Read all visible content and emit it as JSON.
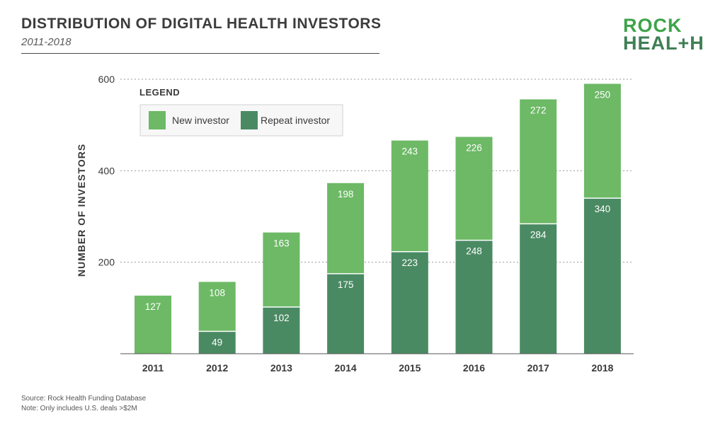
{
  "header": {
    "title": "DISTRIBUTION OF DIGITAL HEALTH INVESTORS",
    "subtitle": "2011-2018"
  },
  "logo": {
    "line1": "ROCK",
    "line2": "HEAL+H"
  },
  "footer": {
    "source": "Source: Rock Health Funding Database",
    "note": "Note: Only includes U.S. deals >$2M"
  },
  "colors": {
    "new_investor": "#6db966",
    "repeat_investor": "#4a8a63",
    "grid": "#9a9a9a"
  },
  "chart_data": {
    "type": "bar",
    "stacked": true,
    "title": "DISTRIBUTION OF DIGITAL HEALTH INVESTORS",
    "subtitle": "2011-2018",
    "xlabel": "",
    "ylabel": "NUMBER OF INVESTORS",
    "ylim": [
      0,
      600
    ],
    "yticks": [
      200,
      400,
      600
    ],
    "grid": true,
    "legend_title": "LEGEND",
    "legend_position": "top-left",
    "categories": [
      "2011",
      "2012",
      "2013",
      "2014",
      "2015",
      "2016",
      "2017",
      "2018"
    ],
    "series": [
      {
        "name": "Repeat investor",
        "values": [
          0,
          49,
          102,
          175,
          223,
          248,
          284,
          340
        ]
      },
      {
        "name": "New investor",
        "values": [
          127,
          108,
          163,
          198,
          243,
          226,
          272,
          250
        ]
      }
    ]
  }
}
